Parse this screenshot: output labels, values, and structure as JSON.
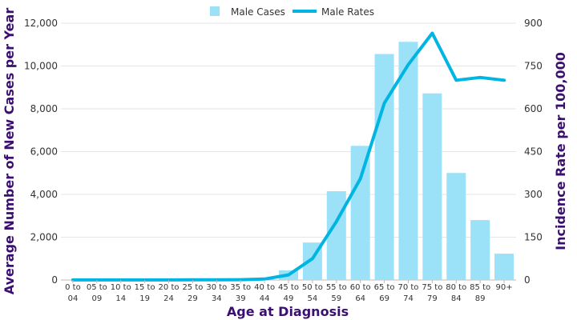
{
  "chart_data": {
    "type": "bar",
    "title": "",
    "xlabel": "Age at Diagnosis",
    "ylabel": "Average Number of New Cases per Year",
    "y2label": "Incidence Rate per 100,000",
    "categories": [
      [
        "0 to",
        "04"
      ],
      [
        "05 to",
        "09"
      ],
      [
        "10 to",
        "14"
      ],
      [
        "15 to",
        "19"
      ],
      [
        "20 to",
        "24"
      ],
      [
        "25 to",
        "29"
      ],
      [
        "30 to",
        "34"
      ],
      [
        "35 to",
        "39"
      ],
      [
        "40 to",
        "44"
      ],
      [
        "45 to",
        "49"
      ],
      [
        "50 to",
        "54"
      ],
      [
        "55 to",
        "59"
      ],
      [
        "60 to",
        "64"
      ],
      [
        "65 to",
        "69"
      ],
      [
        "70 to",
        "74"
      ],
      [
        "75 to",
        "79"
      ],
      [
        "80 to",
        "84"
      ],
      [
        "85 to",
        "89"
      ],
      [
        "90+",
        ""
      ]
    ],
    "ylim": [
      0,
      12000
    ],
    "yticks": [
      "0",
      "2,000",
      "4,000",
      "6,000",
      "8,000",
      "10,000",
      "12,000"
    ],
    "y2lim": [
      0,
      900
    ],
    "y2ticks": [
      "0",
      "150",
      "300",
      "450",
      "600",
      "750",
      "900"
    ],
    "series": [
      {
        "name": "Male Cases",
        "type": "bar",
        "axis": "left",
        "color": "#9be1f7",
        "values": [
          2,
          2,
          3,
          5,
          6,
          8,
          10,
          15,
          40,
          450,
          1750,
          4150,
          6270,
          10560,
          11130,
          8720,
          5000,
          2800,
          1230
        ]
      },
      {
        "name": "Male Rates",
        "type": "line",
        "axis": "right",
        "color": "#00b5e2",
        "values": [
          0.2,
          0.2,
          0.2,
          0.3,
          0.4,
          0.5,
          0.7,
          1.2,
          3.5,
          18,
          75,
          205,
          355,
          620,
          755,
          865,
          700,
          710,
          700
        ]
      }
    ],
    "legend_position": "top-center",
    "grid": true
  }
}
